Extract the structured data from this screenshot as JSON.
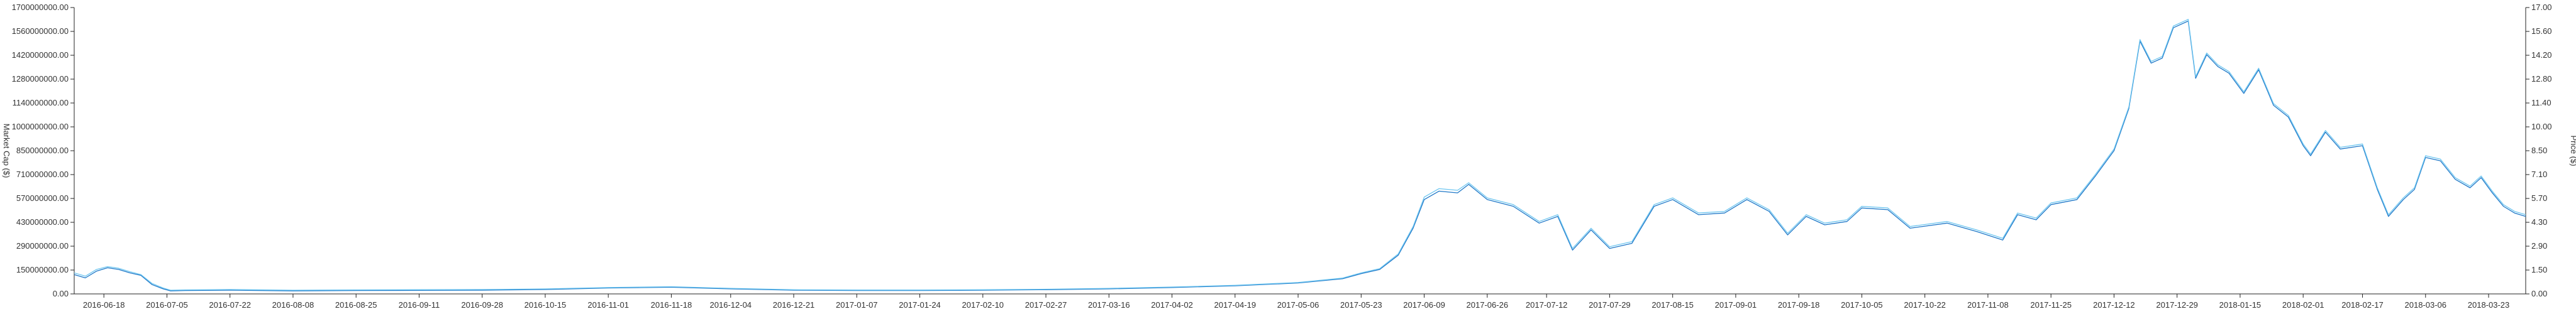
{
  "chart_data": {
    "type": "line",
    "title": "",
    "ylabel_left": "Market Cap ($)",
    "ylabel_right": "Price ($)",
    "xlabel": "",
    "grid": false,
    "legend": "none",
    "colors": {
      "market_cap": "#1f78c8",
      "price": "#6ec6f0"
    },
    "x_ticks": [
      "2016-06-18",
      "2016-07-05",
      "2016-07-22",
      "2016-08-08",
      "2016-08-25",
      "2016-09-11",
      "2016-09-28",
      "2016-10-15",
      "2016-11-01",
      "2016-11-18",
      "2016-12-04",
      "2016-12-21",
      "2017-01-07",
      "2017-01-24",
      "2017-02-10",
      "2017-02-27",
      "2017-03-16",
      "2017-04-02",
      "2017-04-19",
      "2017-05-06",
      "2017-05-23",
      "2017-06-09",
      "2017-06-26",
      "2017-07-12",
      "2017-07-29",
      "2017-08-15",
      "2017-09-01",
      "2017-09-18",
      "2017-10-05",
      "2017-10-22",
      "2017-11-08",
      "2017-11-25",
      "2017-12-12",
      "2017-12-29",
      "2018-01-15",
      "2018-02-01",
      "2018-02-17",
      "2018-03-06",
      "2018-03-23"
    ],
    "y_left_ticks": [
      "0.00",
      "150000000.00",
      "290000000.00",
      "430000000.00",
      "570000000.00",
      "710000000.00",
      "850000000.00",
      "1000000000.00",
      "1140000000.00",
      "1280000000.00",
      "1420000000.00",
      "1560000000.00",
      "1700000000.00"
    ],
    "y_right_ticks": [
      "0.00",
      "1.50",
      "2.90",
      "4.30",
      "5.70",
      "7.10",
      "8.50",
      "10.00",
      "11.40",
      "12.80",
      "14.20",
      "15.60",
      "17.00"
    ],
    "ylim_left": [
      0,
      1700000000
    ],
    "ylim_right": [
      0,
      17
    ],
    "xlim": [
      "2016-06-10",
      "2018-04-02"
    ],
    "series": [
      {
        "name": "Market Cap ($)",
        "axis": "left",
        "points": [
          [
            "2016-06-10",
            115000000
          ],
          [
            "2016-06-13",
            95000000
          ],
          [
            "2016-06-16",
            135000000
          ],
          [
            "2016-06-19",
            155000000
          ],
          [
            "2016-06-22",
            145000000
          ],
          [
            "2016-06-25",
            125000000
          ],
          [
            "2016-06-28",
            110000000
          ],
          [
            "2016-07-01",
            55000000
          ],
          [
            "2016-07-04",
            30000000
          ],
          [
            "2016-07-06",
            18000000
          ],
          [
            "2016-07-10",
            20000000
          ],
          [
            "2016-07-22",
            22000000
          ],
          [
            "2016-08-08",
            18000000
          ],
          [
            "2016-08-25",
            20000000
          ],
          [
            "2016-09-11",
            21000000
          ],
          [
            "2016-09-28",
            22000000
          ],
          [
            "2016-10-15",
            26000000
          ],
          [
            "2016-11-01",
            35000000
          ],
          [
            "2016-11-18",
            40000000
          ],
          [
            "2016-12-04",
            30000000
          ],
          [
            "2016-12-21",
            22000000
          ],
          [
            "2017-01-07",
            20000000
          ],
          [
            "2017-01-24",
            20000000
          ],
          [
            "2017-02-10",
            22000000
          ],
          [
            "2017-02-27",
            25000000
          ],
          [
            "2017-03-16",
            30000000
          ],
          [
            "2017-04-02",
            38000000
          ],
          [
            "2017-04-19",
            48000000
          ],
          [
            "2017-05-06",
            65000000
          ],
          [
            "2017-05-18",
            90000000
          ],
          [
            "2017-05-23",
            120000000
          ],
          [
            "2017-05-28",
            145000000
          ],
          [
            "2017-06-02",
            230000000
          ],
          [
            "2017-06-06",
            390000000
          ],
          [
            "2017-06-09",
            560000000
          ],
          [
            "2017-06-13",
            610000000
          ],
          [
            "2017-06-18",
            600000000
          ],
          [
            "2017-06-21",
            650000000
          ],
          [
            "2017-06-26",
            560000000
          ],
          [
            "2017-07-03",
            520000000
          ],
          [
            "2017-07-10",
            420000000
          ],
          [
            "2017-07-15",
            460000000
          ],
          [
            "2017-07-19",
            260000000
          ],
          [
            "2017-07-24",
            380000000
          ],
          [
            "2017-07-29",
            270000000
          ],
          [
            "2017-08-04",
            300000000
          ],
          [
            "2017-08-10",
            520000000
          ],
          [
            "2017-08-15",
            560000000
          ],
          [
            "2017-08-22",
            470000000
          ],
          [
            "2017-08-29",
            480000000
          ],
          [
            "2017-09-04",
            560000000
          ],
          [
            "2017-09-10",
            490000000
          ],
          [
            "2017-09-15",
            350000000
          ],
          [
            "2017-09-20",
            460000000
          ],
          [
            "2017-09-25",
            410000000
          ],
          [
            "2017-10-01",
            430000000
          ],
          [
            "2017-10-05",
            510000000
          ],
          [
            "2017-10-12",
            500000000
          ],
          [
            "2017-10-18",
            390000000
          ],
          [
            "2017-10-28",
            420000000
          ],
          [
            "2017-11-05",
            370000000
          ],
          [
            "2017-11-12",
            320000000
          ],
          [
            "2017-11-16",
            470000000
          ],
          [
            "2017-11-21",
            440000000
          ],
          [
            "2017-11-25",
            530000000
          ],
          [
            "2017-12-02",
            560000000
          ],
          [
            "2017-12-07",
            700000000
          ],
          [
            "2017-12-12",
            850000000
          ],
          [
            "2017-12-16",
            1100000000
          ],
          [
            "2017-12-19",
            1500000000
          ],
          [
            "2017-12-22",
            1370000000
          ],
          [
            "2017-12-25",
            1400000000
          ],
          [
            "2017-12-28",
            1580000000
          ],
          [
            "2018-01-01",
            1620000000
          ],
          [
            "2018-01-03",
            1280000000
          ],
          [
            "2018-01-06",
            1420000000
          ],
          [
            "2018-01-09",
            1350000000
          ],
          [
            "2018-01-12",
            1310000000
          ],
          [
            "2018-01-16",
            1190000000
          ],
          [
            "2018-01-20",
            1330000000
          ],
          [
            "2018-01-24",
            1120000000
          ],
          [
            "2018-01-28",
            1050000000
          ],
          [
            "2018-02-01",
            880000000
          ],
          [
            "2018-02-03",
            820000000
          ],
          [
            "2018-02-07",
            960000000
          ],
          [
            "2018-02-11",
            860000000
          ],
          [
            "2018-02-17",
            880000000
          ],
          [
            "2018-02-21",
            620000000
          ],
          [
            "2018-02-24",
            460000000
          ],
          [
            "2018-02-28",
            560000000
          ],
          [
            "2018-03-03",
            620000000
          ],
          [
            "2018-03-06",
            810000000
          ],
          [
            "2018-03-10",
            790000000
          ],
          [
            "2018-03-14",
            680000000
          ],
          [
            "2018-03-18",
            630000000
          ],
          [
            "2018-03-21",
            690000000
          ],
          [
            "2018-03-24",
            600000000
          ],
          [
            "2018-03-27",
            520000000
          ],
          [
            "2018-03-30",
            480000000
          ],
          [
            "2018-04-02",
            460000000
          ]
        ]
      },
      {
        "name": "Price ($)",
        "axis": "right",
        "points": [
          [
            "2016-06-10",
            1.25
          ],
          [
            "2016-06-13",
            1.05
          ],
          [
            "2016-06-16",
            1.45
          ],
          [
            "2016-06-19",
            1.62
          ],
          [
            "2016-06-22",
            1.52
          ],
          [
            "2016-06-25",
            1.32
          ],
          [
            "2016-06-28",
            1.15
          ],
          [
            "2016-07-01",
            0.62
          ],
          [
            "2016-07-04",
            0.35
          ],
          [
            "2016-07-06",
            0.22
          ],
          [
            "2016-07-10",
            0.24
          ],
          [
            "2016-07-22",
            0.26
          ],
          [
            "2016-08-08",
            0.22
          ],
          [
            "2016-08-25",
            0.24
          ],
          [
            "2016-09-11",
            0.25
          ],
          [
            "2016-09-28",
            0.26
          ],
          [
            "2016-10-15",
            0.3
          ],
          [
            "2016-11-01",
            0.38
          ],
          [
            "2016-11-18",
            0.43
          ],
          [
            "2016-12-04",
            0.33
          ],
          [
            "2016-12-21",
            0.25
          ],
          [
            "2017-01-07",
            0.23
          ],
          [
            "2017-01-24",
            0.23
          ],
          [
            "2017-02-10",
            0.25
          ],
          [
            "2017-02-27",
            0.28
          ],
          [
            "2017-03-16",
            0.33
          ],
          [
            "2017-04-02",
            0.41
          ],
          [
            "2017-04-19",
            0.51
          ],
          [
            "2017-05-06",
            0.68
          ],
          [
            "2017-05-18",
            0.94
          ],
          [
            "2017-05-23",
            1.25
          ],
          [
            "2017-05-28",
            1.5
          ],
          [
            "2017-06-02",
            2.38
          ],
          [
            "2017-06-06",
            4.0
          ],
          [
            "2017-06-09",
            5.75
          ],
          [
            "2017-06-13",
            6.25
          ],
          [
            "2017-06-18",
            6.15
          ],
          [
            "2017-06-21",
            6.6
          ],
          [
            "2017-06-26",
            5.7
          ],
          [
            "2017-07-03",
            5.3
          ],
          [
            "2017-07-10",
            4.3
          ],
          [
            "2017-07-15",
            4.7
          ],
          [
            "2017-07-19",
            2.7
          ],
          [
            "2017-07-24",
            3.9
          ],
          [
            "2017-07-29",
            2.8
          ],
          [
            "2017-08-04",
            3.1
          ],
          [
            "2017-08-10",
            5.3
          ],
          [
            "2017-08-15",
            5.7
          ],
          [
            "2017-08-22",
            4.8
          ],
          [
            "2017-08-29",
            4.9
          ],
          [
            "2017-09-04",
            5.7
          ],
          [
            "2017-09-10",
            5.0
          ],
          [
            "2017-09-15",
            3.6
          ],
          [
            "2017-09-20",
            4.7
          ],
          [
            "2017-09-25",
            4.2
          ],
          [
            "2017-10-01",
            4.4
          ],
          [
            "2017-10-05",
            5.2
          ],
          [
            "2017-10-12",
            5.1
          ],
          [
            "2017-10-18",
            4.0
          ],
          [
            "2017-10-28",
            4.3
          ],
          [
            "2017-11-05",
            3.8
          ],
          [
            "2017-11-12",
            3.3
          ],
          [
            "2017-11-16",
            4.8
          ],
          [
            "2017-11-21",
            4.5
          ],
          [
            "2017-11-25",
            5.4
          ],
          [
            "2017-12-02",
            5.7
          ],
          [
            "2017-12-07",
            7.1
          ],
          [
            "2017-12-12",
            8.6
          ],
          [
            "2017-12-16",
            11.1
          ],
          [
            "2017-12-19",
            15.1
          ],
          [
            "2017-12-22",
            13.8
          ],
          [
            "2017-12-25",
            14.1
          ],
          [
            "2017-12-28",
            15.9
          ],
          [
            "2018-01-01",
            16.3
          ],
          [
            "2018-01-03",
            12.9
          ],
          [
            "2018-01-06",
            14.3
          ],
          [
            "2018-01-09",
            13.6
          ],
          [
            "2018-01-12",
            13.2
          ],
          [
            "2018-01-16",
            12.0
          ],
          [
            "2018-01-20",
            13.4
          ],
          [
            "2018-01-24",
            11.3
          ],
          [
            "2018-01-28",
            10.6
          ],
          [
            "2018-02-01",
            8.9
          ],
          [
            "2018-02-03",
            8.3
          ],
          [
            "2018-02-07",
            9.7
          ],
          [
            "2018-02-11",
            8.7
          ],
          [
            "2018-02-17",
            8.9
          ],
          [
            "2018-02-21",
            6.3
          ],
          [
            "2018-02-24",
            4.7
          ],
          [
            "2018-02-28",
            5.7
          ],
          [
            "2018-03-03",
            6.3
          ],
          [
            "2018-03-06",
            8.2
          ],
          [
            "2018-03-10",
            8.0
          ],
          [
            "2018-03-14",
            6.9
          ],
          [
            "2018-03-18",
            6.4
          ],
          [
            "2018-03-21",
            7.0
          ],
          [
            "2018-03-24",
            6.1
          ],
          [
            "2018-03-27",
            5.3
          ],
          [
            "2018-03-30",
            4.9
          ],
          [
            "2018-04-02",
            4.7
          ]
        ]
      }
    ]
  }
}
